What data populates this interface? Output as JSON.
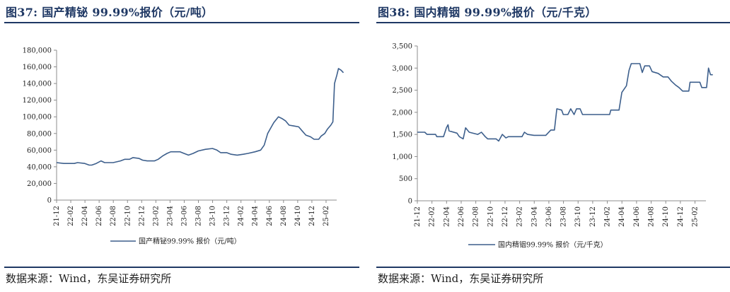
{
  "panels": [
    {
      "figure_title": "图37:  国产精铋 99.99%报价（元/吨）",
      "source": "数据来源：Wind，东吴证券研究所"
    },
    {
      "figure_title": "图38:  国内精铟 99.99%报价（元/千克）",
      "source": "数据来源：Wind，东吴证券研究所"
    }
  ],
  "chart_data": [
    {
      "type": "line",
      "title": "",
      "xlabel": "",
      "ylabel": "",
      "ylim": [
        0,
        180000
      ],
      "yticks": [
        "0",
        "20,000",
        "40,000",
        "60,000",
        "80,000",
        "100,000",
        "120,000",
        "140,000",
        "160,000",
        "180,000"
      ],
      "xticks": [
        "21-12",
        "22-02",
        "22-04",
        "22-06",
        "22-08",
        "22-10",
        "22-12",
        "23-02",
        "23-04",
        "23-06",
        "23-08",
        "23-10",
        "23-12",
        "24-02",
        "24-04",
        "24-06",
        "24-08",
        "24-10",
        "24-12",
        "25-02"
      ],
      "grid": false,
      "legend_position": "bottom",
      "color": "#3d5f8c",
      "series": [
        {
          "name": "国产精铋99.99% 报价（元/吨）",
          "points": [
            [
              "2021-12-01",
              45000
            ],
            [
              "2022-01-01",
              44000
            ],
            [
              "2022-02-15",
              44000
            ],
            [
              "2022-03-01",
              45000
            ],
            [
              "2022-04-01",
              44000
            ],
            [
              "2022-04-20",
              42000
            ],
            [
              "2022-05-01",
              42000
            ],
            [
              "2022-05-20",
              44000
            ],
            [
              "2022-06-10",
              47000
            ],
            [
              "2022-06-25",
              45000
            ],
            [
              "2022-08-01",
              45000
            ],
            [
              "2022-09-01",
              47000
            ],
            [
              "2022-09-20",
              49000
            ],
            [
              "2022-10-10",
              49000
            ],
            [
              "2022-10-25",
              51000
            ],
            [
              "2022-11-20",
              50000
            ],
            [
              "2022-12-05",
              48000
            ],
            [
              "2022-12-25",
              47000
            ],
            [
              "2023-01-25",
              47000
            ],
            [
              "2023-02-10",
              49000
            ],
            [
              "2023-03-01",
              53000
            ],
            [
              "2023-03-20",
              56000
            ],
            [
              "2023-04-05",
              58000
            ],
            [
              "2023-05-15",
              58000
            ],
            [
              "2023-06-01",
              56000
            ],
            [
              "2023-06-20",
              54000
            ],
            [
              "2023-07-10",
              56000
            ],
            [
              "2023-08-01",
              59000
            ],
            [
              "2023-09-01",
              61000
            ],
            [
              "2023-10-01",
              62000
            ],
            [
              "2023-10-20",
              60000
            ],
            [
              "2023-11-05",
              57000
            ],
            [
              "2023-12-01",
              57000
            ],
            [
              "2023-12-20",
              55000
            ],
            [
              "2024-01-15",
              54000
            ],
            [
              "2024-02-10",
              55000
            ],
            [
              "2024-03-01",
              56000
            ],
            [
              "2024-04-01",
              58000
            ],
            [
              "2024-04-25",
              60000
            ],
            [
              "2024-05-10",
              66000
            ],
            [
              "2024-05-25",
              80000
            ],
            [
              "2024-06-20",
              93000
            ],
            [
              "2024-07-10",
              100000
            ],
            [
              "2024-07-25",
              98000
            ],
            [
              "2024-08-10",
              95000
            ],
            [
              "2024-08-25",
              90000
            ],
            [
              "2024-09-15",
              89000
            ],
            [
              "2024-10-05",
              88000
            ],
            [
              "2024-10-20",
              83000
            ],
            [
              "2024-11-05",
              78000
            ],
            [
              "2024-11-25",
              76000
            ],
            [
              "2024-12-10",
              73000
            ],
            [
              "2024-12-30",
              73000
            ],
            [
              "2025-01-10",
              77000
            ],
            [
              "2025-01-25",
              80000
            ],
            [
              "2025-02-05",
              85000
            ],
            [
              "2025-02-20",
              90000
            ],
            [
              "2025-03-01",
              94000
            ],
            [
              "2025-03-08",
              140000
            ],
            [
              "2025-03-18",
              150000
            ],
            [
              "2025-03-25",
              158000
            ],
            [
              "2025-04-05",
              156000
            ],
            [
              "2025-04-15",
              153000
            ]
          ]
        }
      ]
    },
    {
      "type": "line",
      "title": "",
      "xlabel": "",
      "ylabel": "",
      "ylim": [
        0,
        3500
      ],
      "yticks": [
        "0",
        "500",
        "1,000",
        "1,500",
        "2,000",
        "2,500",
        "3,000",
        "3,500"
      ],
      "xticks": [
        "21-12",
        "22-02",
        "22-04",
        "22-06",
        "22-08",
        "22-10",
        "22-12",
        "23-02",
        "23-04",
        "23-06",
        "23-08",
        "23-10",
        "23-12",
        "24-02",
        "24-04",
        "24-06",
        "24-08",
        "24-10",
        "24-12",
        "25-02"
      ],
      "grid": false,
      "legend_position": "bottom",
      "color": "#3d5f8c",
      "series": [
        {
          "name": "国内精铟99.99% 报价（元/千克）",
          "points": [
            [
              "2021-12-01",
              1550
            ],
            [
              "2022-01-01",
              1550
            ],
            [
              "2022-01-10",
              1500
            ],
            [
              "2022-02-15",
              1500
            ],
            [
              "2022-02-20",
              1450
            ],
            [
              "2022-03-20",
              1450
            ],
            [
              "2022-04-01",
              1650
            ],
            [
              "2022-04-08",
              1720
            ],
            [
              "2022-04-12",
              1580
            ],
            [
              "2022-05-15",
              1530
            ],
            [
              "2022-05-25",
              1450
            ],
            [
              "2022-06-10",
              1400
            ],
            [
              "2022-06-20",
              1650
            ],
            [
              "2022-07-05",
              1550
            ],
            [
              "2022-08-10",
              1500
            ],
            [
              "2022-08-25",
              1550
            ],
            [
              "2022-09-10",
              1450
            ],
            [
              "2022-09-20",
              1400
            ],
            [
              "2022-10-25",
              1400
            ],
            [
              "2022-11-05",
              1350
            ],
            [
              "2022-11-20",
              1500
            ],
            [
              "2022-12-05",
              1420
            ],
            [
              "2022-12-15",
              1450
            ],
            [
              "2023-02-10",
              1450
            ],
            [
              "2023-02-20",
              1550
            ],
            [
              "2023-03-05",
              1500
            ],
            [
              "2023-04-01",
              1480
            ],
            [
              "2023-05-20",
              1480
            ],
            [
              "2023-06-10",
              1600
            ],
            [
              "2023-06-25",
              1600
            ],
            [
              "2023-07-05",
              2080
            ],
            [
              "2023-07-25",
              2050
            ],
            [
              "2023-08-01",
              1950
            ],
            [
              "2023-08-20",
              1950
            ],
            [
              "2023-09-01",
              2080
            ],
            [
              "2023-09-15",
              1950
            ],
            [
              "2023-09-25",
              2080
            ],
            [
              "2023-10-10",
              2080
            ],
            [
              "2023-10-20",
              1950
            ],
            [
              "2024-02-10",
              1950
            ],
            [
              "2024-02-15",
              2050
            ],
            [
              "2024-03-20",
              2050
            ],
            [
              "2024-04-01",
              2450
            ],
            [
              "2024-04-20",
              2600
            ],
            [
              "2024-05-01",
              2950
            ],
            [
              "2024-05-10",
              3100
            ],
            [
              "2024-06-15",
              3100
            ],
            [
              "2024-06-25",
              2900
            ],
            [
              "2024-07-05",
              3050
            ],
            [
              "2024-07-25",
              3050
            ],
            [
              "2024-08-05",
              2920
            ],
            [
              "2024-08-30",
              2880
            ],
            [
              "2024-09-20",
              2800
            ],
            [
              "2024-10-10",
              2800
            ],
            [
              "2024-10-25",
              2700
            ],
            [
              "2024-11-10",
              2620
            ],
            [
              "2024-11-25",
              2560
            ],
            [
              "2024-12-10",
              2480
            ],
            [
              "2025-01-05",
              2480
            ],
            [
              "2025-01-10",
              2680
            ],
            [
              "2025-02-20",
              2680
            ],
            [
              "2025-02-28",
              2560
            ],
            [
              "2025-03-20",
              2560
            ],
            [
              "2025-03-28",
              3000
            ],
            [
              "2025-04-05",
              2850
            ],
            [
              "2025-04-15",
              2850
            ]
          ]
        }
      ]
    }
  ]
}
